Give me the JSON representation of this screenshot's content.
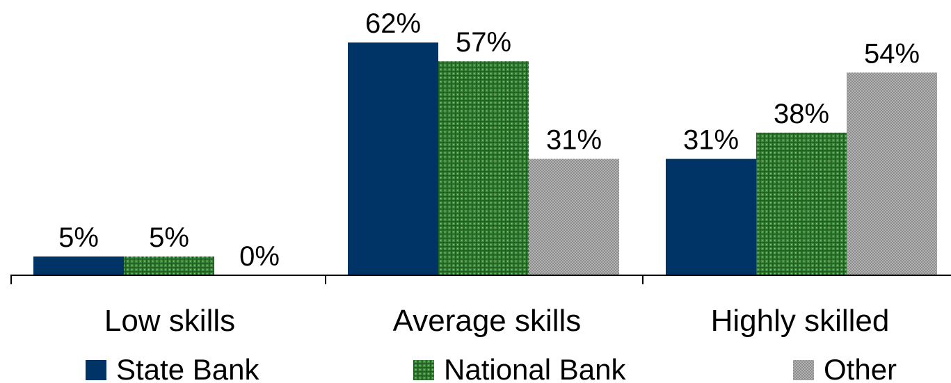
{
  "chart_data": {
    "type": "bar",
    "categories": [
      "Low skills",
      "Average skills",
      "Highly skilled"
    ],
    "series": [
      {
        "name": "State Bank",
        "values": [
          5,
          62,
          31
        ],
        "labels": [
          "5%",
          "62%",
          "31%"
        ],
        "color": "#003366",
        "pattern": "solid"
      },
      {
        "name": "National Bank",
        "values": [
          5,
          57,
          38
        ],
        "labels": [
          "5%",
          "57%",
          "38%"
        ],
        "color": "#2e7d32",
        "pattern": "grid"
      },
      {
        "name": "Other",
        "values": [
          0,
          31,
          54
        ],
        "labels": [
          "0%",
          "31%",
          "54%"
        ],
        "color": "#a6a6a6",
        "pattern": "dots"
      }
    ],
    "unit": "%",
    "ylim": [
      0,
      66
    ],
    "grid": false,
    "y_axis_visible": false,
    "legend_position": "bottom"
  }
}
